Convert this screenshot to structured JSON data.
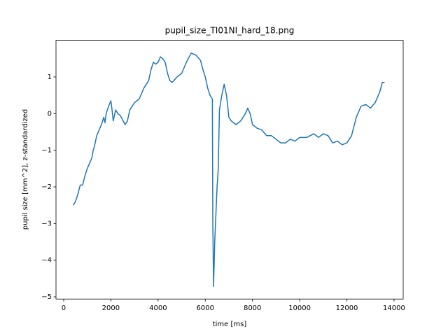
{
  "chart_data": {
    "type": "line",
    "title": "pupil_size_TI01NI_hard_18.png",
    "x_label": "time [ms]",
    "y_label": "pupil size [mm^2], z-standardized",
    "x": [
      400,
      500,
      600,
      700,
      800,
      900,
      1000,
      1100,
      1200,
      1250,
      1300,
      1400,
      1500,
      1600,
      1700,
      1750,
      1800,
      1900,
      2000,
      2050,
      2100,
      2200,
      2300,
      2400,
      2600,
      2700,
      2800,
      3000,
      3200,
      3400,
      3600,
      3700,
      3800,
      3900,
      4000,
      4100,
      4200,
      4300,
      4400,
      4500,
      4600,
      4800,
      5000,
      5200,
      5400,
      5600,
      5800,
      5900,
      6000,
      6100,
      6200,
      6300,
      6320,
      6350,
      6400,
      6500,
      6550,
      6600,
      6700,
      6800,
      6900,
      7000,
      7100,
      7300,
      7500,
      7700,
      7800,
      7900,
      8000,
      8200,
      8400,
      8600,
      8800,
      9000,
      9200,
      9400,
      9600,
      9800,
      10000,
      10300,
      10600,
      10800,
      11000,
      11200,
      11400,
      11600,
      11800,
      12000,
      12200,
      12400,
      12600,
      12800,
      13000,
      13200,
      13400,
      13500,
      13600
    ],
    "series": [
      {
        "name": "pupil size",
        "color": "#1f77b4",
        "values": [
          -2.5,
          -2.4,
          -2.2,
          -1.95,
          -1.95,
          -1.7,
          -1.5,
          -1.35,
          -1.2,
          -1.0,
          -0.9,
          -0.6,
          -0.45,
          -0.3,
          -0.1,
          -0.25,
          0.0,
          0.2,
          0.35,
          0.1,
          -0.2,
          0.1,
          0.0,
          -0.05,
          -0.3,
          -0.2,
          0.1,
          0.3,
          0.4,
          0.7,
          0.9,
          1.2,
          1.4,
          1.35,
          1.4,
          1.55,
          1.5,
          1.4,
          1.1,
          0.9,
          0.85,
          1.0,
          1.1,
          1.4,
          1.65,
          1.6,
          1.45,
          1.2,
          1.0,
          0.7,
          0.5,
          0.4,
          -3.0,
          -4.72,
          -3.5,
          -2.0,
          -1.5,
          0.1,
          0.5,
          0.8,
          0.5,
          -0.1,
          -0.2,
          -0.3,
          -0.2,
          0.0,
          0.15,
          0.0,
          -0.3,
          -0.4,
          -0.45,
          -0.6,
          -0.6,
          -0.7,
          -0.8,
          -0.8,
          -0.7,
          -0.75,
          -0.65,
          -0.65,
          -0.55,
          -0.65,
          -0.55,
          -0.6,
          -0.8,
          -0.75,
          -0.85,
          -0.8,
          -0.6,
          -0.1,
          0.2,
          0.25,
          0.15,
          0.3,
          0.6,
          0.85,
          0.85
        ]
      }
    ],
    "xlim": [
      -326,
      14387
    ],
    "ylim": [
      -5.06,
      2.0
    ],
    "xticks": [
      0,
      2000,
      4000,
      6000,
      8000,
      10000,
      12000,
      14000
    ],
    "yticks": [
      {
        "value": -5,
        "label": "−5"
      },
      {
        "value": -4,
        "label": "−4"
      },
      {
        "value": -3,
        "label": "−3"
      },
      {
        "value": -2,
        "label": "−2"
      },
      {
        "value": -1,
        "label": "−1"
      },
      0,
      1
    ]
  }
}
